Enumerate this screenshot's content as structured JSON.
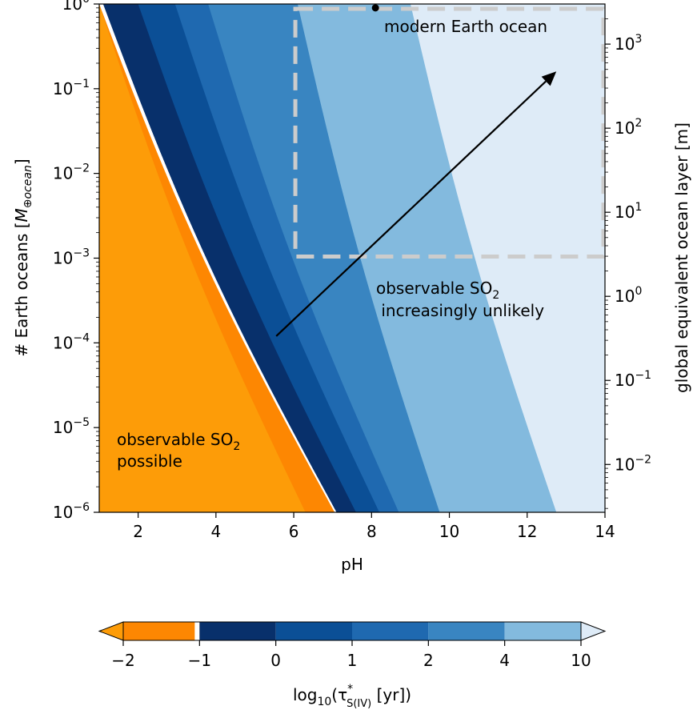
{
  "chart_data": {
    "type": "area",
    "xlabel": "pH",
    "ylabel": "# Earth oceans [M⊕ocean]",
    "ylabel_parts": {
      "text": "# Earth oceans [",
      "symbol": "M",
      "subscript": "⊕ocean",
      "close": "]"
    },
    "y2label": "global equivalent ocean layer [m]",
    "xlim": [
      1,
      14
    ],
    "ylim": [
      1e-06,
      1
    ],
    "yscale": "log",
    "y2lim": [
      0.0027,
      3000
    ],
    "y2scale": "log",
    "xticks": [
      2,
      4,
      6,
      8,
      10,
      12,
      14
    ],
    "yticks_exp": [
      "0",
      "−1",
      "−2",
      "−3",
      "−4",
      "−5",
      "−6"
    ],
    "yticks_values": [
      1,
      0.1,
      0.01,
      0.001,
      0.0001,
      1e-05,
      1e-06
    ],
    "y2ticks_exp": [
      "3",
      "2",
      "1",
      "0",
      "−1",
      "−2"
    ],
    "y2ticks_values": [
      1000,
      100,
      10,
      1,
      0.1,
      0.01
    ],
    "tick_base": "10",
    "boundaries": [
      {
        "level": "-2",
        "x_at_ymax": 1.0,
        "x_at_ymin": 6.3
      },
      {
        "level": "-1",
        "x_at_ymax": 1.0,
        "x_at_ymin": 7.05
      },
      {
        "level": "-1 (white)",
        "x_at_ymax": 1.1,
        "x_at_ymin": 7.1
      },
      {
        "level": "0",
        "x_at_ymax": 2.0,
        "x_at_ymin": 7.6
      },
      {
        "level": "1",
        "x_at_ymax": 2.95,
        "x_at_ymin": 8.2
      },
      {
        "level": "2",
        "x_at_ymax": 3.8,
        "x_at_ymin": 8.7
      },
      {
        "level": "4",
        "x_at_ymax": 6.1,
        "x_at_ymin": 9.75
      },
      {
        "level": "10",
        "x_at_ymax": 9.0,
        "x_at_ymin": 12.75
      }
    ],
    "marker": {
      "x": 8.1,
      "y": 0.9,
      "label": "modern Earth ocean"
    },
    "box": {
      "x_min": 6.0,
      "x_max": 14.0,
      "y_min": 0.001,
      "y_max": 1.0
    },
    "arrow": {
      "from": [
        5.55,
        0.00012
      ],
      "to": [
        12.75,
        0.16
      ]
    },
    "region_labels": [
      {
        "lines": [
          "observable SO",
          "possible"
        ],
        "subscript": "2"
      },
      {
        "lines": [
          "observable SO",
          " increasingly unlikely"
        ],
        "subscript": "2"
      }
    ],
    "colorbar": {
      "ticks": [
        "−2",
        "−1",
        "0",
        "1",
        "2",
        "4",
        "10"
      ],
      "label": {
        "prefix": "log",
        "base": "10",
        "open": "(τ",
        "star": "*",
        "sub": "S(IV)",
        "close": " [yr])"
      },
      "colors": [
        "#fd9c08",
        "#fd8702",
        "#ffffff",
        "#08306b",
        "#0b4f96",
        "#1f69b0",
        "#3985c1",
        "#83bade",
        "#deebf7"
      ]
    },
    "colors": {
      "orange_light": "#fd9c08",
      "orange_dark": "#fd8702",
      "blue_0": "#08306b",
      "blue_1": "#0b4f96",
      "blue_2": "#1f69b0",
      "blue_3": "#3985c1",
      "blue_4": "#83bade",
      "blue_5": "#deebf7",
      "box_dash": "#cccccc"
    }
  }
}
